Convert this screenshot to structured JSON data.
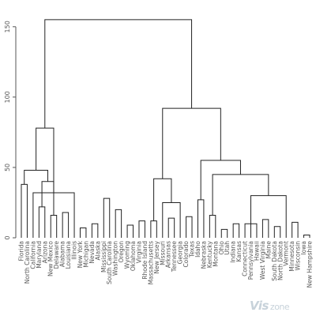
{
  "chart_data": {
    "type": "dendrogram",
    "title": "",
    "xlabel": "",
    "ylabel": "",
    "ylim": [
      0,
      160
    ],
    "yticks": [
      0,
      50,
      100,
      150
    ],
    "leaves": [
      "Florida",
      "North Carolina",
      "California",
      "Maryland",
      "Arizona",
      "New Mexico",
      "Delaware",
      "Alabama",
      "Louisiana",
      "Illinois",
      "New York",
      "Michigan",
      "Nevada",
      "Alaska",
      "Mississippi",
      "South Carolina",
      "Washington",
      "Oregon",
      "Wyoming",
      "Oklahoma",
      "Virginia",
      "Rhode Island",
      "Massachusetts",
      "New Jersey",
      "Missouri",
      "Arkansas",
      "Tennessee",
      "Georgia",
      "Colorado",
      "Texas",
      "Idaho",
      "Nebraska",
      "Kentucky",
      "Montana",
      "Ohio",
      "Utah",
      "Indiana",
      "Kansas",
      "Connecticut",
      "Pennsylvania",
      "Hawaii",
      "West Virginia",
      "Maine",
      "South Dakota",
      "North Dakota",
      "Vermont",
      "Minnesota",
      "Wisconsin",
      "Iowa",
      "New Hampshire"
    ],
    "merges": [
      {
        "a": "New Hampshire",
        "b": "Iowa",
        "h": 2
      },
      {
        "a": "Utah",
        "b": "Ohio",
        "h": 6
      },
      {
        "a": "North Dakota",
        "b": "South Dakota",
        "h": 8
      },
      {
        "a": "Michigan",
        "b": "New York",
        "h": 7
      },
      {
        "a": "Oklahoma",
        "b": "Wyoming",
        "h": 9
      },
      {
        "a": "Kansas",
        "b": "Indiana",
        "h": 10
      },
      {
        "a": "Hawaii",
        "b": "Connecticut",
        "h": 10
      },
      {
        "a": "Nevada",
        "b": "Alaska",
        "h": 10
      },
      {
        "a": "Minnesota",
        "b": "Wisconsin",
        "h": 11
      },
      {
        "a": "Massachusetts",
        "b": "New Jersey",
        "h": 12
      },
      {
        "a": "Virginia",
        "b": "Rhode Island",
        "h": 12
      },
      {
        "a": "Maine",
        "b": "West Virginia",
        "h": 13
      },
      {
        "a": "Arkansas",
        "b": "Tennessee",
        "h": 14
      },
      {
        "a": "Texas",
        "b": "Colorado",
        "h": 15
      },
      {
        "a": "Montana",
        "b": "Kentucky",
        "h": 16
      },
      {
        "a": "Delaware",
        "b": "New Mexico",
        "h": 16
      },
      {
        "a": "Alabama",
        "b": "Louisiana",
        "h": 18
      },
      {
        "a": "Washington",
        "b": "Oregon",
        "h": 20
      },
      {
        "a": "Arizona",
        "b": "Maryland",
        "h": 22
      },
      {
        "a": "Georgia",
        "b": "Missouri",
        "h": 25
      },
      {
        "a": "Idaho",
        "b": "Nebraska",
        "h": 27
      },
      {
        "a": "Mississippi",
        "b": "South Carolina",
        "h": 28
      },
      {
        "a": "Vermont",
        "b": "Pennsylvania",
        "h": 30
      },
      {
        "a": "Illinois",
        "b": "California",
        "h": 32
      },
      {
        "a": "North Carolina",
        "b": "Florida",
        "h": 38
      },
      {
        "a": "Arizona",
        "b": "Delaware",
        "h": 40
      },
      {
        "a": "Missouri",
        "b": "Massachusetts",
        "h": 42
      },
      {
        "a": "Montana",
        "b": "Pennsylvania",
        "h": 45
      },
      {
        "a": "Florida",
        "b": "Arizona",
        "h": 48
      },
      {
        "a": "Idaho",
        "b": "Vermont",
        "h": 55
      },
      {
        "a": "Florida",
        "b": "Illinois",
        "h": 78
      },
      {
        "a": "Missouri",
        "b": "Idaho",
        "h": 92
      },
      {
        "a": "Florida",
        "b": "Missouri",
        "h": 155
      }
    ]
  },
  "watermark": {
    "main": "Vis",
    "sub": "zone"
  }
}
